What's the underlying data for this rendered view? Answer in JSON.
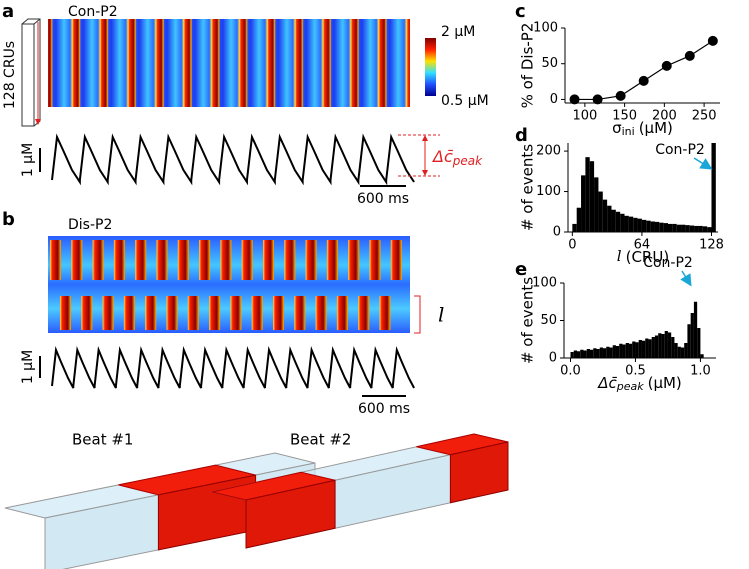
{
  "panel_labels": [
    "a",
    "b",
    "c",
    "d",
    "e"
  ],
  "heatmap_a": {
    "title": "Con-P2",
    "colorbar_max": "2 μM",
    "colorbar_min": "0.5 μM",
    "axis_label": "128 CRUs"
  },
  "trace_a": {
    "scale_y": "1 μM",
    "scale_x": "600 ms",
    "annotation_symbol": "Δc̄",
    "annotation_sub": "peak"
  },
  "heatmap_b": {
    "title": "Dis-P2",
    "annotation": "l"
  },
  "trace_b": {
    "scale_y": "1 μM",
    "scale_x": "600 ms"
  },
  "renders": [
    "Beat #1",
    "Beat #2"
  ],
  "chart_data": [
    {
      "type": "line",
      "x_label": "σ",
      "x_label_sub": "ini",
      "x_label_unit": "(μM)",
      "y_label": "% of Dis-P2",
      "x": [
        87,
        116,
        145,
        174,
        203,
        232,
        261
      ],
      "values": [
        0,
        0,
        5,
        26,
        47,
        61,
        82
      ],
      "color": "#000000",
      "xlim": [
        75,
        270
      ],
      "ylim": [
        -5,
        100
      ],
      "xticks": [
        100,
        150,
        200,
        250
      ],
      "yticks": [
        0,
        50,
        100
      ]
    },
    {
      "type": "histogram",
      "x_label": "l",
      "x_label_unit": "(CRU)",
      "y_label": "# of events",
      "bins": [
        0,
        4,
        8,
        12,
        16,
        20,
        24,
        28,
        32,
        36,
        40,
        44,
        48,
        52,
        56,
        60,
        64,
        68,
        72,
        76,
        80,
        84,
        88,
        92,
        96,
        100,
        104,
        108,
        112,
        116,
        120,
        124,
        128,
        132
      ],
      "values": [
        20,
        60,
        140,
        185,
        175,
        135,
        100,
        80,
        65,
        55,
        50,
        45,
        40,
        38,
        35,
        33,
        30,
        28,
        26,
        25,
        23,
        22,
        20,
        20,
        18,
        18,
        17,
        16,
        15,
        15,
        14,
        12,
        220
      ],
      "color": "#000000",
      "xlim": [
        -4,
        134
      ],
      "ylim": [
        0,
        220
      ],
      "xticks": [
        0,
        64,
        128
      ],
      "yticks": [
        0,
        100,
        200
      ],
      "annotation": "Con-P2",
      "annotation_color": "#1aa7d8"
    },
    {
      "type": "histogram",
      "x_label": "Δc̄",
      "x_label_sub": "peak",
      "x_label_unit": "(μM)",
      "y_label": "# of events",
      "bins": [
        0,
        0.025,
        0.05,
        0.075,
        0.1,
        0.125,
        0.15,
        0.175,
        0.2,
        0.225,
        0.25,
        0.275,
        0.3,
        0.325,
        0.35,
        0.375,
        0.4,
        0.425,
        0.45,
        0.475,
        0.5,
        0.525,
        0.55,
        0.575,
        0.6,
        0.625,
        0.65,
        0.675,
        0.7,
        0.725,
        0.75,
        0.775,
        0.8,
        0.825,
        0.85,
        0.875,
        0.9,
        0.925,
        0.95,
        0.975,
        1,
        1.025,
        1.05
      ],
      "values": [
        8,
        10,
        9,
        11,
        10,
        12,
        11,
        13,
        12,
        14,
        13,
        15,
        14,
        17,
        16,
        19,
        18,
        20,
        19,
        22,
        21,
        24,
        23,
        26,
        25,
        28,
        30,
        33,
        32,
        36,
        34,
        28,
        20,
        15,
        14,
        20,
        45,
        60,
        75,
        40,
        5,
        0
      ],
      "color": "#000000",
      "xlim": [
        -0.05,
        1.12
      ],
      "ylim": [
        0,
        100
      ],
      "xticks": [
        {
          "value": 0,
          "label": "0.0"
        },
        {
          "value": 0.5,
          "label": "0.5"
        },
        {
          "value": 1,
          "label": "1.0"
        }
      ],
      "yticks": [
        0,
        50,
        100
      ],
      "annotation": "Con-P2",
      "annotation_color": "#1aa7d8"
    }
  ]
}
